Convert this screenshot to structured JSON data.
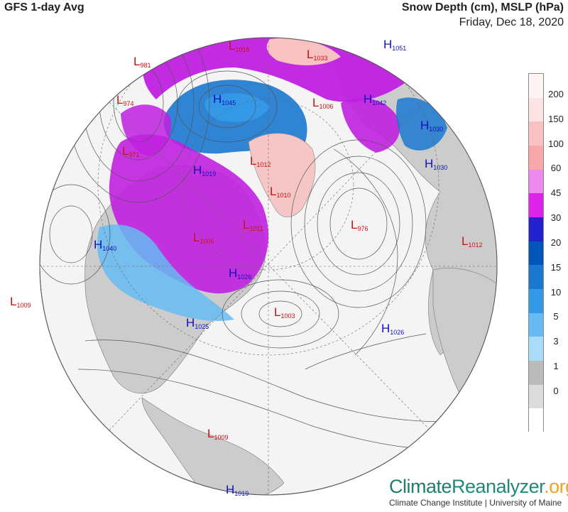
{
  "title_left": "GFS 1-day Avg",
  "title_right": "Snow Depth (cm), MSLP (hPa)",
  "date": "Friday, Dec 18, 2020",
  "legend": {
    "labels": [
      "200",
      "150",
      "100",
      "60",
      "45",
      "30",
      "20",
      "15",
      "10",
      "5",
      "3",
      "1",
      "0"
    ],
    "colors": [
      "#fff4f4",
      "#fde3e3",
      "#f9c2c2",
      "#f7a8a8",
      "#ee88ee",
      "#dd22ee",
      "#2222cc",
      "#0055bb",
      "#1a78d0",
      "#3399e6",
      "#66bbf2",
      "#aadcfa",
      "#bbbbbb",
      "#dcdcdc",
      "#ffffff"
    ],
    "colors_note": ""
  },
  "colors": {
    "ocean": "#f4f4f4",
    "land": "#cccccc",
    "greenland": "#f6c6c6",
    "snow_deep": "#c020e0",
    "snow_mid": "#1a78d0",
    "low_label": "#cc1111",
    "high_label": "#1111bb"
  },
  "pressure_centers": [
    {
      "type": "L",
      "value": "1018",
      "pos": "north-pole-top"
    },
    {
      "type": "L",
      "value": "1033",
      "pos": "siberia"
    },
    {
      "type": "H",
      "value": "1051",
      "pos": "north-russia"
    },
    {
      "type": "L",
      "value": "981",
      "pos": "bering"
    },
    {
      "type": "L",
      "value": "974",
      "pos": "aleutian"
    },
    {
      "type": "H",
      "value": "1045",
      "pos": "arctic-ocean"
    },
    {
      "type": "H",
      "value": "1042",
      "pos": "scandinavia"
    },
    {
      "type": "L",
      "value": "1006",
      "pos": "svalbard"
    },
    {
      "type": "H",
      "value": "1030",
      "pos": "east-europe"
    },
    {
      "type": "H",
      "value": "1030",
      "pos": "central-europe"
    },
    {
      "type": "L",
      "value": "971",
      "pos": "gulf-alaska"
    },
    {
      "type": "H",
      "value": "1019",
      "pos": "canada-west"
    },
    {
      "type": "L",
      "value": "1012",
      "pos": "greenland-west"
    },
    {
      "type": "L",
      "value": "1010",
      "pos": "greenland-south"
    },
    {
      "type": "L",
      "value": "976",
      "pos": "north-atlantic"
    },
    {
      "type": "L",
      "value": "1012",
      "pos": "north-africa"
    },
    {
      "type": "L",
      "value": "1011",
      "pos": "labrador"
    },
    {
      "type": "L",
      "value": "1005",
      "pos": "hudson"
    },
    {
      "type": "H",
      "value": "1040",
      "pos": "west-canada"
    },
    {
      "type": "H",
      "value": "1026",
      "pos": "great-lakes"
    },
    {
      "type": "H",
      "value": "1025",
      "pos": "east-us"
    },
    {
      "type": "L",
      "value": "1003",
      "pos": "atlantic-mid"
    },
    {
      "type": "H",
      "value": "1026",
      "pos": "azores"
    },
    {
      "type": "L",
      "value": "1009",
      "pos": "pacific"
    },
    {
      "type": "L",
      "value": "1009",
      "pos": "caribbean"
    },
    {
      "type": "H",
      "value": "1019",
      "pos": "south-america"
    }
  ],
  "brand": {
    "word1": "Climate",
    "word2": "Reanalyzer",
    "suffix": ".org",
    "sub": "Climate Change Institute | University of Maine"
  }
}
